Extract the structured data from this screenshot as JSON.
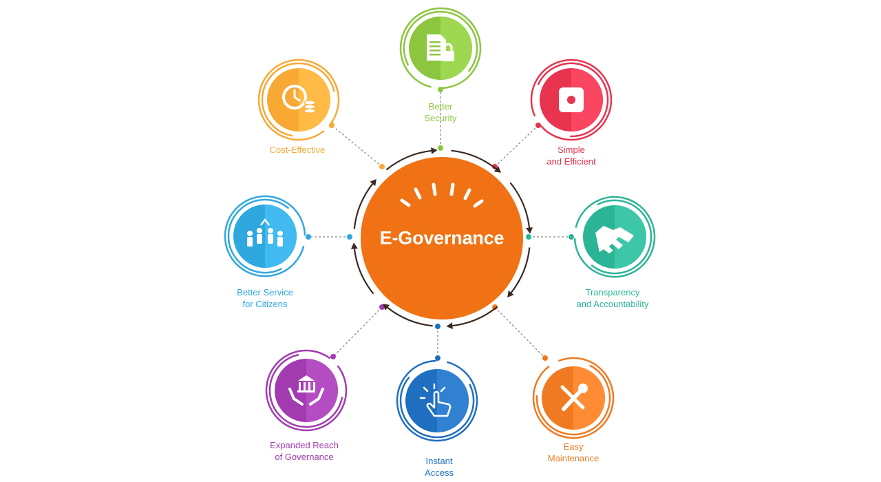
{
  "center": {
    "title": "E-Governance",
    "color": "#f07214"
  },
  "nodes": [
    {
      "id": "better-security",
      "lines": [
        "Better",
        "Security"
      ],
      "color": "#8cc63f",
      "icon": "document-lock-icon"
    },
    {
      "id": "simple-efficient",
      "lines": [
        "Simple",
        "and Efficient"
      ],
      "color": "#e8344f",
      "icon": "stop-button-icon"
    },
    {
      "id": "transparency",
      "lines": [
        "Transparency",
        "and Accountability"
      ],
      "color": "#2bb596",
      "icon": "handshake-icon"
    },
    {
      "id": "easy-maintenance",
      "lines": [
        "Easy",
        "Maintenance"
      ],
      "color": "#f07a22",
      "icon": "wrench-screwdriver-icon"
    },
    {
      "id": "instant-access",
      "lines": [
        "Instant",
        "Access"
      ],
      "color": "#1f6fc1",
      "icon": "touch-hand-icon"
    },
    {
      "id": "expanded-reach",
      "lines": [
        "Expanded Reach",
        "of Governance"
      ],
      "color": "#a23ab0",
      "icon": "hands-bank-icon"
    },
    {
      "id": "better-service",
      "lines": [
        "Better Service",
        "for Citizens"
      ],
      "color": "#2fa8df",
      "icon": "citizens-group-icon"
    },
    {
      "id": "cost-effective",
      "lines": [
        "Cost-Effective"
      ],
      "color": "#f8a934",
      "icon": "clock-coins-icon"
    }
  ]
}
